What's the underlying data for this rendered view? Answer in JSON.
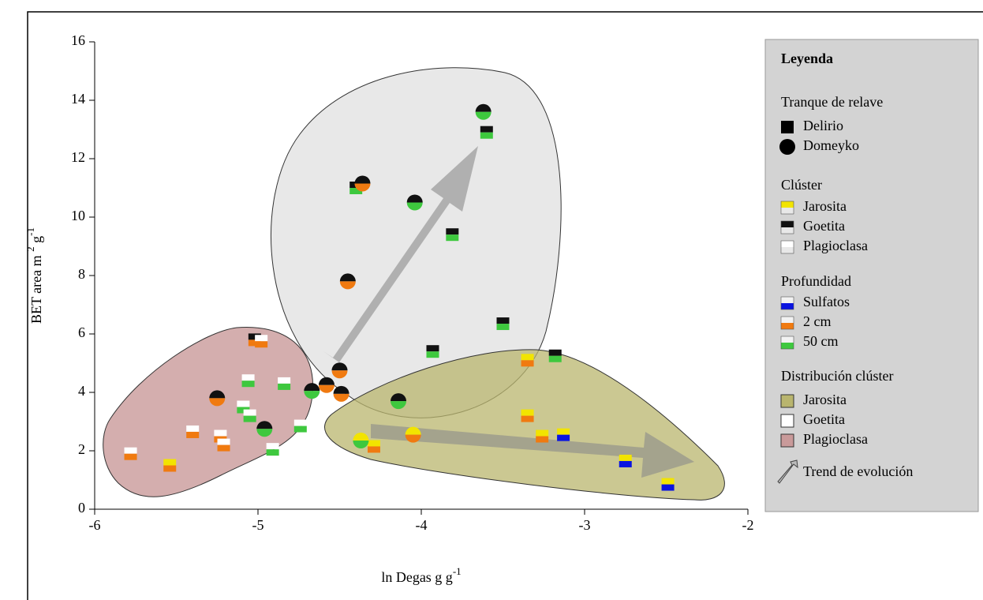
{
  "chart_data": {
    "type": "scatter",
    "xlabel": [
      "ln Degas g g",
      "-1"
    ],
    "ylabel": [
      "BET area m ",
      "2",
      " g",
      "-1"
    ],
    "xlim": [
      -6,
      -2
    ],
    "xticks": [
      -6,
      -5,
      -4,
      -3,
      -2
    ],
    "ylim": [
      0,
      16
    ],
    "yticks": [
      0,
      2,
      4,
      6,
      8,
      10,
      12,
      14,
      16
    ],
    "grid": false,
    "legend": {
      "title": "Leyenda",
      "position": "right",
      "site_title": "Tranque de relave",
      "cluster_title": "Clúster",
      "depth_title": "Profundidad",
      "zone_title": "Distribución clúster",
      "trend_label": "Trend de evolución"
    },
    "clusters": [
      {
        "name": "Jarosita",
        "color": "#f2e400"
      },
      {
        "name": "Goetita",
        "color": "#111111"
      },
      {
        "name": "Plagioclasa",
        "color": "#ffffff"
      }
    ],
    "depths": [
      {
        "name": "Sulfatos",
        "color": "#0a14e0"
      },
      {
        "name": "2 cm",
        "color": "#f07a10"
      },
      {
        "name": "50 cm",
        "color": "#3ec83e"
      }
    ],
    "zones": [
      {
        "name": "Jarosita",
        "color": "#b9b56e"
      },
      {
        "name": "Goetita",
        "color": "#ffffff"
      },
      {
        "name": "Plagioclasa",
        "color": "#c99a9a"
      }
    ],
    "series": [
      {
        "name": "Delirio",
        "marker": "square",
        "x": [
          -5.78,
          -5.54,
          -5.4,
          -5.23,
          -5.21,
          -5.02,
          -4.98,
          -5.06,
          -5.09,
          -5.05,
          -4.84,
          -4.91,
          -4.74,
          -4.4,
          -3.81,
          -3.6,
          -3.5,
          -3.93,
          -3.18,
          -3.35,
          -3.35,
          -3.26,
          -3.13,
          -4.29,
          -2.75,
          -2.49
        ],
        "y": [
          1.9,
          1.5,
          2.65,
          2.5,
          2.2,
          5.8,
          5.75,
          4.4,
          3.5,
          3.2,
          4.3,
          2.05,
          2.85,
          11.0,
          9.4,
          12.9,
          6.35,
          5.4,
          5.25,
          5.1,
          3.2,
          2.5,
          2.55,
          2.15,
          1.65,
          0.85
        ],
        "cluster": [
          "Plagioclasa",
          "Jarosita",
          "Plagioclasa",
          "Plagioclasa",
          "Plagioclasa",
          "Goetita",
          "Plagioclasa",
          "Plagioclasa",
          "Plagioclasa",
          "Plagioclasa",
          "Plagioclasa",
          "Plagioclasa",
          "Plagioclasa",
          "Goetita",
          "Goetita",
          "Goetita",
          "Goetita",
          "Goetita",
          "Goetita",
          "Jarosita",
          "Jarosita",
          "Jarosita",
          "Jarosita",
          "Jarosita",
          "Jarosita",
          "Jarosita"
        ],
        "depth": [
          "2 cm",
          "2 cm",
          "2 cm",
          "2 cm",
          "2 cm",
          "2 cm",
          "2 cm",
          "50 cm",
          "50 cm",
          "50 cm",
          "50 cm",
          "50 cm",
          "50 cm",
          "50 cm",
          "50 cm",
          "50 cm",
          "50 cm",
          "50 cm",
          "50 cm",
          "2 cm",
          "2 cm",
          "2 cm",
          "Sulfatos",
          "2 cm",
          "Sulfatos",
          "Sulfatos"
        ]
      },
      {
        "name": "Domeyko",
        "marker": "circle",
        "x": [
          -5.25,
          -4.96,
          -4.67,
          -4.58,
          -4.5,
          -4.49,
          -4.45,
          -4.36,
          -4.04,
          -3.62,
          -4.14,
          -4.37,
          -4.05
        ],
        "y": [
          3.8,
          2.75,
          4.05,
          4.25,
          4.75,
          3.95,
          7.8,
          11.15,
          10.5,
          13.6,
          3.7,
          2.35,
          2.55
        ],
        "cluster": [
          "Goetita",
          "Goetita",
          "Goetita",
          "Goetita",
          "Goetita",
          "Goetita",
          "Goetita",
          "Goetita",
          "Goetita",
          "Goetita",
          "Goetita",
          "Jarosita",
          "Jarosita"
        ],
        "depth": [
          "2 cm",
          "50 cm",
          "50 cm",
          "2 cm",
          "2 cm",
          "2 cm",
          "2 cm",
          "2 cm",
          "50 cm",
          "50 cm",
          "50 cm",
          "50 cm",
          "2 cm"
        ]
      }
    ]
  }
}
